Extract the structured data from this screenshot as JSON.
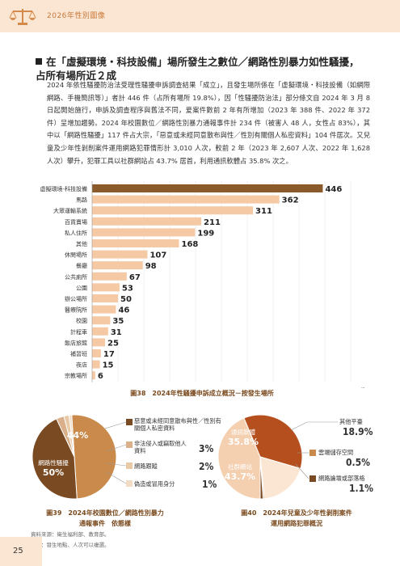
{
  "header": {
    "title": "2026年性別圖像",
    "page_number": "25"
  },
  "section": {
    "heading": "在「虛擬環境・科技設備」場所發生之數位／網路性別暴力如性騷擾，占所有場所近２成",
    "paragraph": "2024 年依性騷擾防治法受理性騷擾申訴調查結果「成立」，且發生場所係在「虛擬環境・科技設備（如網際網路、手機簡訊等）」者計 446 件（占所有場所 19.8%），因「性騷擾防治法」部分條文自 2024 年 3 月 8 日起開始施行，申訴及調查程序與舊法不同，爰案件數前 2 年有所增加（2023 年 388 件、2022 年 372 件）呈增加趨勢。2024 年校園數位／網路性別暴力通報事件計 234 件（被害人 48 人，女性占 83%），其中以「網路性騷擾」117 件占大宗，「惡意或未經同意散布與性／性別有關個人私密資料」104 件居次。又兒童及少年性剝削案件運用網路犯罪情形計 3,010 人次，較前 2 年（2023 年 2,607 人次、2022 年 1,628 人次）攀升，犯罪工具以社群網站占 43.7% 居首，利用通訊軟體占 35.8% 次之。"
  },
  "chart_data": [
    {
      "type": "bar",
      "orientation": "horizontal",
      "title": "圖38　2024年性騷擾申訴成立概況－按發生場所",
      "categories": [
        "虛擬環境-科技設備",
        "馬路",
        "大眾運輸系統",
        "百貨賣場",
        "私人住所",
        "其他",
        "休閒場所",
        "餐廳",
        "公共廁所",
        "公園",
        "辦公場所",
        "醫療院所",
        "校園",
        "計程車",
        "飯店旅館",
        "補習班",
        "夜店",
        "宗教場所"
      ],
      "values": [
        446,
        362,
        311,
        211,
        199,
        168,
        107,
        98,
        67,
        53,
        50,
        46,
        35,
        31,
        25,
        17,
        15,
        6
      ],
      "xlim": [
        0,
        500
      ],
      "xticks": [
        0,
        50,
        100,
        150,
        200,
        250,
        300,
        350,
        400,
        450,
        500
      ],
      "xunit": "件",
      "colors": {
        "first": "#8b5a2b",
        "rest": "#f6c9a5"
      }
    },
    {
      "type": "pie",
      "title": "圖39　2024年校園數位／網路性別暴力通報事件　依態樣",
      "slices": [
        {
          "label": "網路性騷擾",
          "value": 50,
          "display": "50%",
          "color": "#c98a4b"
        },
        {
          "label": "惡意或未經同意散布與性／性別有關個人私密資料",
          "value": 44,
          "display": "44%",
          "color": "#7a4a22"
        },
        {
          "label": "非法侵入或竊取他人資料",
          "value": 3,
          "display": "3%",
          "color": "#d9b08a"
        },
        {
          "label": "網路跟蹤",
          "value": 2,
          "display": "2%",
          "color": "#e8c9a8"
        },
        {
          "label": "偽造或冒用身分",
          "value": 1,
          "display": "1%",
          "color": "#f3dcc6"
        }
      ]
    },
    {
      "type": "pie",
      "title": "圖40　2024年兒童及少年性剝削案件　運用網路犯罪概況",
      "slices": [
        {
          "label": "社群網站",
          "value": 43.7,
          "display": "43.7%",
          "color": "#f4cfb0"
        },
        {
          "label": "通訊軟體",
          "value": 35.8,
          "display": "35.8%",
          "color": "#b54f1e"
        },
        {
          "label": "其他平臺",
          "value": 18.9,
          "display": "18.9%",
          "color": "#fbe6d3"
        },
        {
          "label": "雲端儲存空間",
          "value": 0.5,
          "display": "0.5%",
          "color": "#c98a4b"
        },
        {
          "label": "網路論壇或部落格",
          "value": 1.1,
          "display": "1.1%",
          "color": "#7a4a22"
        }
      ]
    }
  ],
  "legend39": {
    "l1": "惡意或未經同意散布與性／性別有關個人私密資料",
    "l2": "非法侵入或竊取他人資料",
    "l3": "網路跟蹤",
    "l4": "偽造或冒用身分"
  },
  "labels40": {
    "other": "其他平臺",
    "cloud": "雲端儲存空間",
    "forum": "網路論壇或部落格"
  },
  "captions": {
    "fig38": "圖38　2024年性騷擾申訴成立概況－按發生場所",
    "fig39_l1": "圖39　2024年校園數位／網路性別暴力",
    "fig39_l2": "通報事件　依態樣",
    "fig40_l1": "圖40　2024年兒童及少年性剝削案件",
    "fig40_l2": "運用網路犯罪概況"
  },
  "footnotes": {
    "source": "資料來源：衛生福利部、教育部。",
    "note": "說明：發生地點、人次可以複選。"
  }
}
